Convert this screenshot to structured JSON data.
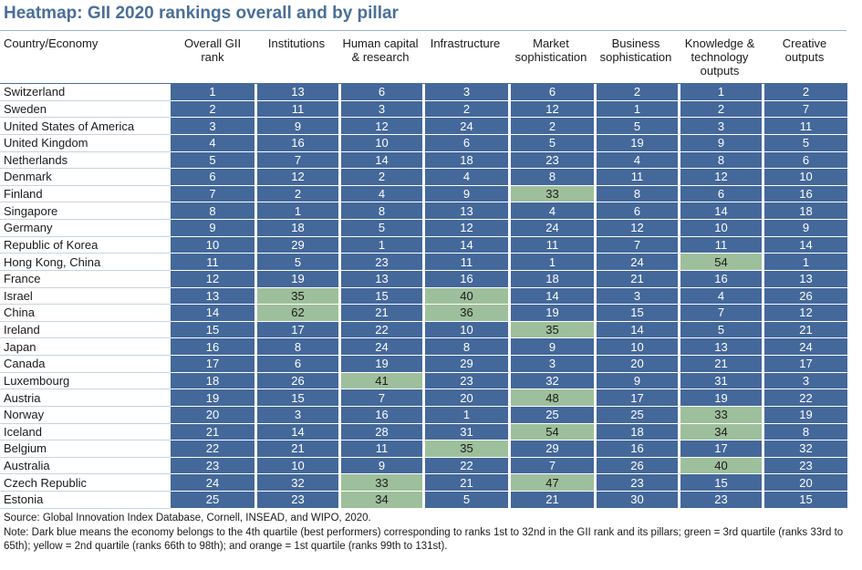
{
  "title": "Heatmap: GII 2020 rankings overall and by pillar",
  "headers": [
    "Country/Economy",
    "Overall GII rank",
    "Institutions",
    "Human capital & research",
    "Infrastructure",
    "Market sophistication",
    "Business sophistication",
    "Knowledge & technology outputs",
    "Creative outputs"
  ],
  "rows": [
    {
      "country": "Switzerland",
      "values": [
        1,
        13,
        6,
        3,
        6,
        2,
        1,
        2
      ]
    },
    {
      "country": "Sweden",
      "values": [
        2,
        11,
        3,
        2,
        12,
        1,
        2,
        7
      ]
    },
    {
      "country": "United States of America",
      "values": [
        3,
        9,
        12,
        24,
        2,
        5,
        3,
        11
      ]
    },
    {
      "country": "United Kingdom",
      "values": [
        4,
        16,
        10,
        6,
        5,
        19,
        9,
        5
      ]
    },
    {
      "country": "Netherlands",
      "values": [
        5,
        7,
        14,
        18,
        23,
        4,
        8,
        6
      ]
    },
    {
      "country": "Denmark",
      "values": [
        6,
        12,
        2,
        4,
        8,
        11,
        12,
        10
      ]
    },
    {
      "country": "Finland",
      "values": [
        7,
        2,
        4,
        9,
        33,
        8,
        6,
        16
      ]
    },
    {
      "country": "Singapore",
      "values": [
        8,
        1,
        8,
        13,
        4,
        6,
        14,
        18
      ]
    },
    {
      "country": "Germany",
      "values": [
        9,
        18,
        5,
        12,
        24,
        12,
        10,
        9
      ]
    },
    {
      "country": "Republic of Korea",
      "values": [
        10,
        29,
        1,
        14,
        11,
        7,
        11,
        14
      ]
    },
    {
      "country": "Hong Kong, China",
      "values": [
        11,
        5,
        23,
        11,
        1,
        24,
        54,
        1
      ]
    },
    {
      "country": "France",
      "values": [
        12,
        19,
        13,
        16,
        18,
        21,
        16,
        13
      ]
    },
    {
      "country": "Israel",
      "values": [
        13,
        35,
        15,
        40,
        14,
        3,
        4,
        26
      ]
    },
    {
      "country": "China",
      "values": [
        14,
        62,
        21,
        36,
        19,
        15,
        7,
        12
      ]
    },
    {
      "country": "Ireland",
      "values": [
        15,
        17,
        22,
        10,
        35,
        14,
        5,
        21
      ]
    },
    {
      "country": "Japan",
      "values": [
        16,
        8,
        24,
        8,
        9,
        10,
        13,
        24
      ]
    },
    {
      "country": "Canada",
      "values": [
        17,
        6,
        19,
        29,
        3,
        20,
        21,
        17
      ]
    },
    {
      "country": "Luxembourg",
      "values": [
        18,
        26,
        41,
        23,
        32,
        9,
        31,
        3
      ]
    },
    {
      "country": "Austria",
      "values": [
        19,
        15,
        7,
        20,
        48,
        17,
        19,
        22
      ]
    },
    {
      "country": "Norway",
      "values": [
        20,
        3,
        16,
        1,
        25,
        25,
        33,
        19
      ]
    },
    {
      "country": "Iceland",
      "values": [
        21,
        14,
        28,
        31,
        54,
        18,
        34,
        8
      ]
    },
    {
      "country": "Belgium",
      "values": [
        22,
        21,
        11,
        35,
        29,
        16,
        17,
        32
      ]
    },
    {
      "country": "Australia",
      "values": [
        23,
        10,
        9,
        22,
        7,
        26,
        40,
        23
      ]
    },
    {
      "country": "Czech Republic",
      "values": [
        24,
        32,
        33,
        21,
        47,
        23,
        15,
        20
      ]
    },
    {
      "country": "Estonia",
      "values": [
        25,
        23,
        34,
        5,
        21,
        30,
        23,
        15
      ]
    }
  ],
  "colors": {
    "q4": "#44689a",
    "q3": "#9ebf9b"
  },
  "source": "Source: Global Innovation Index Database, Cornell, INSEAD, and WIPO, 2020.",
  "note": "Note: Dark blue means the economy belongs to the 4th quartile (best performers) corresponding to ranks 1st to 32nd in the GII rank and its pillars; green = 3rd quartile (ranks 33rd to 65th); yellow = 2nd quartile (ranks 66th to 98th); and orange = 1st quartile (ranks 99th to 131st)."
}
